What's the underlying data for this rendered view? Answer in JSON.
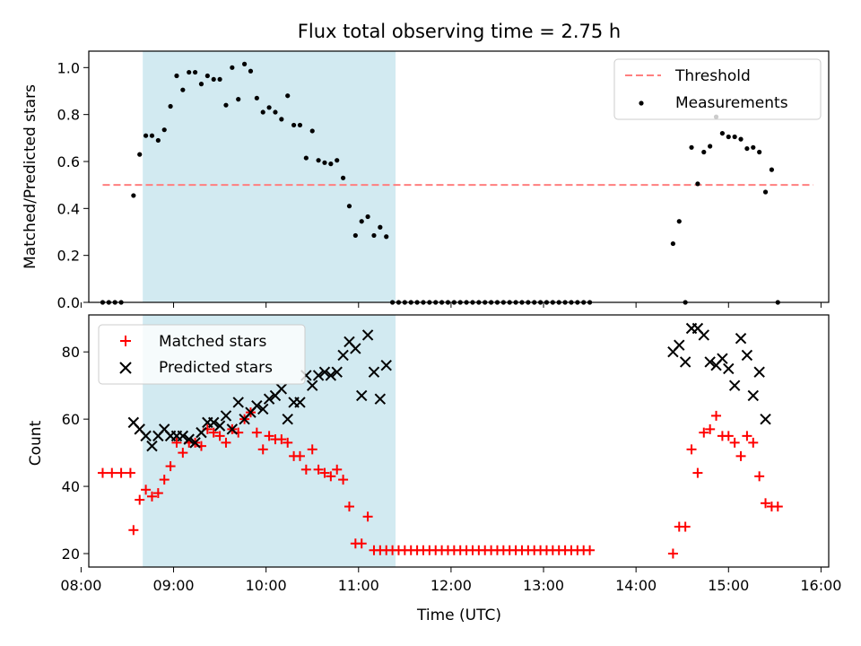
{
  "chart_data": [
    {
      "type": "scatter",
      "title": "Flux total observing time = 2.75 h",
      "xlabel": "",
      "ylabel": "Matched/Predicted stars",
      "ylim": [
        0,
        1.07
      ],
      "xlim": [
        "08:05",
        "16:05"
      ],
      "yticks": [
        "0.0",
        "0.2",
        "0.4",
        "0.6",
        "0.8",
        "1.0"
      ],
      "xtick_labels_shown": false,
      "shaded_interval": {
        "x_start": "08:40",
        "x_end": "11:24",
        "color": "#add8e6"
      },
      "threshold": {
        "y": 0.5,
        "x_start": "08:14",
        "x_end": "15:55",
        "color": "#ff7f7f",
        "style": "dashed"
      },
      "legend": {
        "position": "upper right",
        "entries": [
          "Threshold",
          "Measurements"
        ]
      },
      "series": [
        {
          "name": "Measurements",
          "marker": "dot",
          "color": "#000000",
          "points": [
            [
              "08:14",
              0.0
            ],
            [
              "08:18",
              0.0
            ],
            [
              "08:22",
              0.0
            ],
            [
              "08:26",
              0.0
            ],
            [
              "08:34",
              0.455
            ],
            [
              "08:38",
              0.63
            ],
            [
              "08:42",
              0.71
            ],
            [
              "08:46",
              0.71
            ],
            [
              "08:50",
              0.69
            ],
            [
              "08:54",
              0.735
            ],
            [
              "08:58",
              0.835
            ],
            [
              "09:02",
              0.965
            ],
            [
              "09:06",
              0.905
            ],
            [
              "09:10",
              0.98
            ],
            [
              "09:14",
              0.98
            ],
            [
              "09:18",
              0.93
            ],
            [
              "09:22",
              0.965
            ],
            [
              "09:26",
              0.95
            ],
            [
              "09:30",
              0.95
            ],
            [
              "09:34",
              0.84
            ],
            [
              "09:38",
              1.0
            ],
            [
              "09:42",
              0.865
            ],
            [
              "09:46",
              1.015
            ],
            [
              "09:50",
              0.985
            ],
            [
              "09:54",
              0.87
            ],
            [
              "09:58",
              0.81
            ],
            [
              "10:02",
              0.83
            ],
            [
              "10:06",
              0.81
            ],
            [
              "10:10",
              0.78
            ],
            [
              "10:14",
              0.88
            ],
            [
              "10:18",
              0.755
            ],
            [
              "10:22",
              0.755
            ],
            [
              "10:26",
              0.615
            ],
            [
              "10:30",
              0.73
            ],
            [
              "10:34",
              0.605
            ],
            [
              "10:38",
              0.595
            ],
            [
              "10:42",
              0.59
            ],
            [
              "10:46",
              0.605
            ],
            [
              "10:50",
              0.53
            ],
            [
              "10:54",
              0.41
            ],
            [
              "10:58",
              0.285
            ],
            [
              "11:02",
              0.345
            ],
            [
              "11:06",
              0.365
            ],
            [
              "11:10",
              0.285
            ],
            [
              "11:14",
              0.32
            ],
            [
              "11:18",
              0.28
            ],
            [
              "11:22",
              0.0
            ],
            [
              "11:26",
              0.0
            ],
            [
              "11:30",
              0.0
            ],
            [
              "11:34",
              0.0
            ],
            [
              "11:38",
              0.0
            ],
            [
              "11:42",
              0.0
            ],
            [
              "11:46",
              0.0
            ],
            [
              "11:50",
              0.0
            ],
            [
              "11:54",
              0.0
            ],
            [
              "11:58",
              0.0
            ],
            [
              "12:02",
              0.0
            ],
            [
              "12:06",
              0.0
            ],
            [
              "12:10",
              0.0
            ],
            [
              "12:14",
              0.0
            ],
            [
              "12:18",
              0.0
            ],
            [
              "12:22",
              0.0
            ],
            [
              "12:26",
              0.0
            ],
            [
              "12:30",
              0.0
            ],
            [
              "12:34",
              0.0
            ],
            [
              "12:38",
              0.0
            ],
            [
              "12:42",
              0.0
            ],
            [
              "12:46",
              0.0
            ],
            [
              "12:50",
              0.0
            ],
            [
              "12:54",
              0.0
            ],
            [
              "12:58",
              0.0
            ],
            [
              "13:02",
              0.0
            ],
            [
              "13:06",
              0.0
            ],
            [
              "13:10",
              0.0
            ],
            [
              "13:14",
              0.0
            ],
            [
              "13:18",
              0.0
            ],
            [
              "13:22",
              0.0
            ],
            [
              "13:26",
              0.0
            ],
            [
              "13:30",
              0.0
            ],
            [
              "14:24",
              0.25
            ],
            [
              "14:28",
              0.345
            ],
            [
              "14:32",
              0.0
            ],
            [
              "14:36",
              0.66
            ],
            [
              "14:40",
              0.505
            ],
            [
              "14:44",
              0.64
            ],
            [
              "14:48",
              0.665
            ],
            [
              "14:52",
              0.79
            ],
            [
              "14:56",
              0.72
            ],
            [
              "15:00",
              0.705
            ],
            [
              "15:04",
              0.705
            ],
            [
              "15:08",
              0.695
            ],
            [
              "15:12",
              0.655
            ],
            [
              "15:16",
              0.66
            ],
            [
              "15:20",
              0.64
            ],
            [
              "15:24",
              0.47
            ],
            [
              "15:28",
              0.565
            ],
            [
              "15:32",
              0.0
            ]
          ]
        }
      ]
    },
    {
      "type": "scatter",
      "title": "",
      "xlabel": "Time (UTC)",
      "ylabel": "Count",
      "ylim": [
        16,
        91
      ],
      "xlim": [
        "08:05",
        "16:05"
      ],
      "yticks": [
        "20",
        "40",
        "60",
        "80"
      ],
      "xticks": [
        "08:00",
        "09:00",
        "10:00",
        "11:00",
        "12:00",
        "13:00",
        "14:00",
        "15:00",
        "16:00"
      ],
      "shaded_interval": {
        "x_start": "08:40",
        "x_end": "11:24",
        "color": "#add8e6"
      },
      "legend": {
        "position": "upper left",
        "entries": [
          "Matched stars",
          "Predicted stars"
        ]
      },
      "series": [
        {
          "name": "Matched stars",
          "marker": "plus",
          "color": "#ff0000",
          "points": [
            [
              "08:14",
              44
            ],
            [
              "08:20",
              44
            ],
            [
              "08:26",
              44
            ],
            [
              "08:32",
              44
            ],
            [
              "08:34",
              27
            ],
            [
              "08:38",
              36
            ],
            [
              "08:42",
              39
            ],
            [
              "08:46",
              37
            ],
            [
              "08:50",
              38
            ],
            [
              "08:54",
              42
            ],
            [
              "08:58",
              46
            ],
            [
              "09:02",
              53
            ],
            [
              "09:06",
              50
            ],
            [
              "09:10",
              53
            ],
            [
              "09:14",
              53
            ],
            [
              "09:18",
              52
            ],
            [
              "09:22",
              57
            ],
            [
              "09:26",
              56
            ],
            [
              "09:30",
              55
            ],
            [
              "09:34",
              53
            ],
            [
              "09:38",
              57
            ],
            [
              "09:42",
              56
            ],
            [
              "09:46",
              60
            ],
            [
              "09:50",
              62
            ],
            [
              "09:54",
              56
            ],
            [
              "09:58",
              51
            ],
            [
              "10:02",
              55
            ],
            [
              "10:06",
              54
            ],
            [
              "10:10",
              54
            ],
            [
              "10:14",
              53
            ],
            [
              "10:18",
              49
            ],
            [
              "10:22",
              49
            ],
            [
              "10:26",
              45
            ],
            [
              "10:30",
              51
            ],
            [
              "10:34",
              45
            ],
            [
              "10:38",
              44
            ],
            [
              "10:42",
              43
            ],
            [
              "10:46",
              45
            ],
            [
              "10:50",
              42
            ],
            [
              "10:54",
              34
            ],
            [
              "10:58",
              23
            ],
            [
              "11:02",
              23
            ],
            [
              "11:06",
              31
            ],
            [
              "11:10",
              21
            ],
            [
              "11:14",
              21
            ],
            [
              "11:18",
              21
            ],
            [
              "11:22",
              21
            ],
            [
              "11:26",
              21
            ],
            [
              "11:30",
              21
            ],
            [
              "11:34",
              21
            ],
            [
              "11:38",
              21
            ],
            [
              "11:42",
              21
            ],
            [
              "11:46",
              21
            ],
            [
              "11:50",
              21
            ],
            [
              "11:54",
              21
            ],
            [
              "11:58",
              21
            ],
            [
              "12:02",
              21
            ],
            [
              "12:06",
              21
            ],
            [
              "12:10",
              21
            ],
            [
              "12:14",
              21
            ],
            [
              "12:18",
              21
            ],
            [
              "12:22",
              21
            ],
            [
              "12:26",
              21
            ],
            [
              "12:30",
              21
            ],
            [
              "12:34",
              21
            ],
            [
              "12:38",
              21
            ],
            [
              "12:42",
              21
            ],
            [
              "12:46",
              21
            ],
            [
              "12:50",
              21
            ],
            [
              "12:54",
              21
            ],
            [
              "12:58",
              21
            ],
            [
              "13:02",
              21
            ],
            [
              "13:06",
              21
            ],
            [
              "13:10",
              21
            ],
            [
              "13:14",
              21
            ],
            [
              "13:18",
              21
            ],
            [
              "13:22",
              21
            ],
            [
              "13:26",
              21
            ],
            [
              "13:30",
              21
            ],
            [
              "14:24",
              20
            ],
            [
              "14:28",
              28
            ],
            [
              "14:32",
              28
            ],
            [
              "14:36",
              51
            ],
            [
              "14:40",
              44
            ],
            [
              "14:44",
              56
            ],
            [
              "14:48",
              57
            ],
            [
              "14:52",
              61
            ],
            [
              "14:56",
              55
            ],
            [
              "15:00",
              55
            ],
            [
              "15:04",
              53
            ],
            [
              "15:08",
              49
            ],
            [
              "15:12",
              55
            ],
            [
              "15:16",
              53
            ],
            [
              "15:20",
              43
            ],
            [
              "15:24",
              35
            ],
            [
              "15:28",
              34
            ],
            [
              "15:32",
              34
            ]
          ]
        },
        {
          "name": "Predicted stars",
          "marker": "x",
          "color": "#000000",
          "points": [
            [
              "08:34",
              59
            ],
            [
              "08:38",
              57
            ],
            [
              "08:42",
              55
            ],
            [
              "08:46",
              52
            ],
            [
              "08:50",
              55
            ],
            [
              "08:54",
              57
            ],
            [
              "08:58",
              55
            ],
            [
              "09:02",
              55
            ],
            [
              "09:06",
              55
            ],
            [
              "09:10",
              54
            ],
            [
              "09:14",
              53
            ],
            [
              "09:18",
              56
            ],
            [
              "09:22",
              59
            ],
            [
              "09:26",
              59
            ],
            [
              "09:30",
              58
            ],
            [
              "09:34",
              61
            ],
            [
              "09:38",
              57
            ],
            [
              "09:42",
              65
            ],
            [
              "09:46",
              60
            ],
            [
              "09:50",
              62
            ],
            [
              "09:54",
              64
            ],
            [
              "09:58",
              63
            ],
            [
              "10:02",
              66
            ],
            [
              "10:06",
              67
            ],
            [
              "10:10",
              69
            ],
            [
              "10:14",
              60
            ],
            [
              "10:18",
              65
            ],
            [
              "10:22",
              65
            ],
            [
              "10:26",
              73
            ],
            [
              "10:30",
              70
            ],
            [
              "10:34",
              73
            ],
            [
              "10:38",
              74
            ],
            [
              "10:42",
              73
            ],
            [
              "10:46",
              74
            ],
            [
              "10:50",
              79
            ],
            [
              "10:54",
              83
            ],
            [
              "10:58",
              81
            ],
            [
              "11:02",
              67
            ],
            [
              "11:06",
              85
            ],
            [
              "11:10",
              74
            ],
            [
              "11:14",
              66
            ],
            [
              "11:18",
              76
            ],
            [
              "14:24",
              80
            ],
            [
              "14:28",
              82
            ],
            [
              "14:32",
              77
            ],
            [
              "14:36",
              87
            ],
            [
              "14:40",
              87
            ],
            [
              "14:44",
              85
            ],
            [
              "14:48",
              77
            ],
            [
              "14:52",
              76
            ],
            [
              "14:56",
              78
            ],
            [
              "15:00",
              75
            ],
            [
              "15:04",
              70
            ],
            [
              "15:08",
              84
            ],
            [
              "15:12",
              79
            ],
            [
              "15:16",
              67
            ],
            [
              "15:20",
              74
            ],
            [
              "15:24",
              60
            ]
          ]
        }
      ]
    }
  ]
}
